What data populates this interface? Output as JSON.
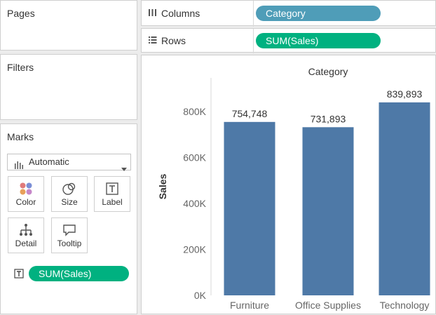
{
  "pages": {
    "title": "Pages"
  },
  "filters": {
    "title": "Filters"
  },
  "marks": {
    "title": "Marks",
    "mark_type": "Automatic",
    "buttons": [
      {
        "label": "Color",
        "icon": "color-icon"
      },
      {
        "label": "Size",
        "icon": "size-icon"
      },
      {
        "label": "Label",
        "icon": "label-icon"
      },
      {
        "label": "Detail",
        "icon": "detail-icon"
      },
      {
        "label": "Tooltip",
        "icon": "tooltip-icon"
      }
    ],
    "label_pill": "SUM(Sales)"
  },
  "shelves": {
    "columns_label": "Columns",
    "columns_pill": "Category",
    "rows_label": "Rows",
    "rows_pill": "SUM(Sales)"
  },
  "colors": {
    "dimension_pill": "#4f9db8",
    "measure_pill": "#00b180",
    "bar": "#4e79a7"
  },
  "chart_data": {
    "type": "bar",
    "title": "Category",
    "ylabel": "Sales",
    "categories": [
      "Furniture",
      "Office Supplies",
      "Technology"
    ],
    "values": [
      754748,
      731893,
      839893
    ],
    "data_labels": [
      "754,748",
      "731,893",
      "839,893"
    ],
    "yticks": [
      0,
      200000,
      400000,
      600000,
      800000
    ],
    "ytick_labels": [
      "0K",
      "200K",
      "400K",
      "600K",
      "800K"
    ],
    "ylim": [
      0,
      900000
    ],
    "grid": false
  }
}
